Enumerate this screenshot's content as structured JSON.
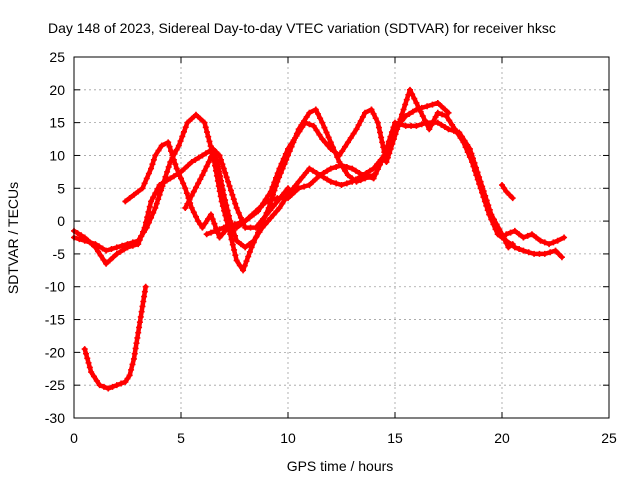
{
  "chart_data": {
    "type": "scatter",
    "title": "Day 148 of 2023, Sidereal Day-to-day VTEC variation (SDTVAR) for receiver hksc",
    "xlabel": "GPS time / hours",
    "ylabel": "SDTVAR / TECUs",
    "xlim": [
      0,
      25
    ],
    "ylim": [
      -30,
      25
    ],
    "xticks": [
      0,
      5,
      10,
      15,
      20,
      25
    ],
    "yticks": [
      -30,
      -25,
      -20,
      -15,
      -10,
      -5,
      0,
      5,
      10,
      15,
      20,
      25
    ],
    "grid": true,
    "marker": "+",
    "color": "#ff0000",
    "series": [
      {
        "name": "arc-1",
        "points": [
          [
            0.0,
            -1.5
          ],
          [
            0.5,
            -2.5
          ],
          [
            1.0,
            -4
          ],
          [
            1.5,
            -6.5
          ],
          [
            2.0,
            -5
          ],
          [
            2.5,
            -4
          ],
          [
            3.0,
            -3.5
          ],
          [
            3.3,
            -1
          ],
          [
            3.6,
            3
          ],
          [
            4.0,
            5.5
          ],
          [
            4.5,
            6.5
          ],
          [
            5.0,
            7.5
          ],
          [
            5.5,
            9
          ],
          [
            6.0,
            10
          ],
          [
            6.5,
            11
          ],
          [
            6.8,
            10
          ],
          [
            7.2,
            6
          ],
          [
            7.6,
            2
          ],
          [
            8.0,
            -1
          ],
          [
            8.5,
            -1
          ],
          [
            9.0,
            1
          ],
          [
            9.5,
            3
          ],
          [
            10.0,
            5
          ]
        ]
      },
      {
        "name": "arc-2",
        "points": [
          [
            0.0,
            -2.5
          ],
          [
            0.5,
            -3
          ],
          [
            1.0,
            -3.5
          ],
          [
            1.5,
            -4.5
          ],
          [
            2.0,
            -4
          ],
          [
            2.5,
            -3.5
          ],
          [
            3.0,
            -3
          ],
          [
            3.4,
            -1
          ],
          [
            3.8,
            2
          ],
          [
            4.2,
            6
          ],
          [
            4.5,
            9
          ],
          [
            4.9,
            11.5
          ],
          [
            5.3,
            15
          ],
          [
            5.7,
            16.2
          ],
          [
            6.1,
            15
          ],
          [
            6.5,
            10
          ],
          [
            6.9,
            3
          ],
          [
            7.3,
            -2
          ],
          [
            7.6,
            -6
          ],
          [
            7.9,
            -7.5
          ],
          [
            8.3,
            -4
          ],
          [
            8.7,
            -1
          ],
          [
            9.1,
            2
          ],
          [
            9.5,
            6
          ],
          [
            10.0,
            10
          ],
          [
            10.5,
            14
          ],
          [
            11.0,
            16.5
          ],
          [
            11.3,
            17
          ],
          [
            11.6,
            15
          ],
          [
            12.0,
            12
          ],
          [
            12.4,
            9
          ],
          [
            12.8,
            7
          ],
          [
            13.2,
            6
          ],
          [
            13.6,
            6.5
          ],
          [
            14.0,
            7
          ]
        ]
      },
      {
        "name": "arc-3",
        "points": [
          [
            0.5,
            -19.5
          ],
          [
            0.8,
            -23
          ],
          [
            1.2,
            -25
          ],
          [
            1.6,
            -25.5
          ],
          [
            2.0,
            -25
          ],
          [
            2.4,
            -24.5
          ],
          [
            2.6,
            -23.5
          ],
          [
            2.8,
            -21
          ],
          [
            3.0,
            -17
          ],
          [
            3.2,
            -13
          ],
          [
            3.35,
            -10
          ]
        ]
      },
      {
        "name": "arc-4",
        "points": [
          [
            2.4,
            3
          ],
          [
            2.8,
            4
          ],
          [
            3.2,
            5
          ],
          [
            3.4,
            6.5
          ],
          [
            3.6,
            8
          ],
          [
            3.8,
            10
          ],
          [
            4.1,
            11.5
          ],
          [
            4.4,
            12
          ],
          [
            4.8,
            8
          ],
          [
            5.2,
            5
          ],
          [
            5.5,
            2
          ],
          [
            5.8,
            0
          ],
          [
            6.0,
            -1
          ],
          [
            6.4,
            1
          ],
          [
            6.8,
            -2.5
          ],
          [
            7.2,
            -1
          ],
          [
            7.6,
            -1
          ],
          [
            8.0,
            0
          ],
          [
            8.6,
            1.5
          ],
          [
            9.2,
            4.5
          ],
          [
            9.6,
            8
          ],
          [
            10.0,
            11
          ],
          [
            10.4,
            13
          ],
          [
            10.8,
            15
          ],
          [
            11.2,
            14.5
          ],
          [
            11.6,
            12.5
          ],
          [
            12.0,
            11
          ],
          [
            12.4,
            10
          ],
          [
            12.8,
            12
          ],
          [
            13.2,
            14
          ],
          [
            13.6,
            16.5
          ],
          [
            13.9,
            17
          ],
          [
            14.2,
            15
          ],
          [
            14.4,
            12
          ],
          [
            14.6,
            9
          ],
          [
            14.8,
            11
          ],
          [
            15.1,
            14
          ],
          [
            15.4,
            17
          ],
          [
            15.7,
            20
          ],
          [
            16.0,
            18
          ],
          [
            16.3,
            16
          ],
          [
            16.6,
            14
          ],
          [
            17.0,
            16.5
          ],
          [
            17.4,
            16
          ],
          [
            17.8,
            14
          ],
          [
            18.2,
            12
          ],
          [
            18.6,
            9
          ],
          [
            19.0,
            5
          ],
          [
            19.4,
            1
          ],
          [
            19.8,
            -2
          ],
          [
            20.2,
            -3
          ],
          [
            20.6,
            -4
          ],
          [
            21.0,
            -4.5
          ],
          [
            21.5,
            -5
          ],
          [
            22.0,
            -5
          ],
          [
            22.5,
            -4.5
          ],
          [
            22.8,
            -5.5
          ]
        ]
      },
      {
        "name": "arc-5",
        "points": [
          [
            5.2,
            2
          ],
          [
            5.6,
            4.5
          ],
          [
            6.0,
            7
          ],
          [
            6.3,
            9
          ],
          [
            6.5,
            10.5
          ],
          [
            6.7,
            9
          ],
          [
            7.0,
            4
          ],
          [
            7.3,
            0
          ],
          [
            7.6,
            -3
          ],
          [
            8.0,
            -4
          ],
          [
            8.4,
            -3
          ],
          [
            8.8,
            -1
          ],
          [
            9.2,
            0.5
          ],
          [
            9.6,
            2
          ],
          [
            10.0,
            4
          ],
          [
            10.5,
            6
          ],
          [
            11.0,
            8
          ],
          [
            11.5,
            7
          ],
          [
            12.0,
            6
          ],
          [
            12.5,
            5.5
          ],
          [
            13.0,
            6
          ],
          [
            13.5,
            7
          ],
          [
            14.0,
            8
          ],
          [
            14.5,
            10
          ],
          [
            15.0,
            14
          ],
          [
            15.5,
            16
          ],
          [
            16.0,
            17
          ],
          [
            16.5,
            17.5
          ],
          [
            17.0,
            18
          ],
          [
            17.5,
            16.5
          ]
        ]
      },
      {
        "name": "arc-6",
        "points": [
          [
            6.2,
            -2
          ],
          [
            6.6,
            -1.5
          ],
          [
            7.0,
            -1
          ],
          [
            7.5,
            -0.5
          ],
          [
            8.0,
            0
          ],
          [
            8.5,
            1.5
          ],
          [
            9.0,
            3
          ],
          [
            9.5,
            3.5
          ],
          [
            10.0,
            3.5
          ],
          [
            10.5,
            5
          ],
          [
            11.0,
            5.5
          ],
          [
            11.5,
            7
          ],
          [
            12.0,
            8
          ],
          [
            12.5,
            8.5
          ],
          [
            13.0,
            8
          ],
          [
            13.5,
            7
          ],
          [
            14.0,
            6.5
          ],
          [
            14.5,
            10
          ],
          [
            15.0,
            15
          ],
          [
            15.5,
            14.5
          ],
          [
            16.0,
            14.5
          ],
          [
            16.5,
            15
          ],
          [
            17.0,
            15
          ],
          [
            17.5,
            14
          ],
          [
            18.0,
            13.5
          ],
          [
            18.5,
            11
          ],
          [
            19.0,
            6
          ],
          [
            19.5,
            1
          ],
          [
            20.0,
            -2
          ],
          [
            20.3,
            -4
          ],
          [
            20.5,
            -3.5
          ]
        ]
      },
      {
        "name": "arc-7",
        "points": [
          [
            20.0,
            5.5
          ],
          [
            20.2,
            4.5
          ],
          [
            20.5,
            3.5
          ]
        ]
      },
      {
        "name": "arc-8",
        "points": [
          [
            20.2,
            -2
          ],
          [
            20.6,
            -1.5
          ],
          [
            21.0,
            -2.5
          ],
          [
            21.4,
            -2
          ],
          [
            21.8,
            -3
          ],
          [
            22.2,
            -3.5
          ],
          [
            22.6,
            -3
          ],
          [
            22.9,
            -2.5
          ]
        ]
      }
    ]
  }
}
